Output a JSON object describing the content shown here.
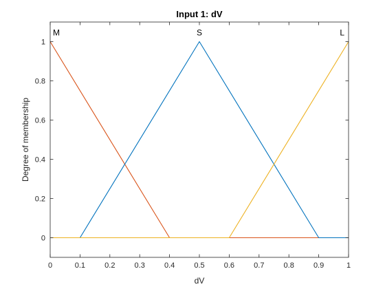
{
  "chart_data": {
    "type": "line",
    "title": "Input 1: dV",
    "xlabel": "dV",
    "ylabel": "Degree of membership",
    "xlim": [
      0,
      1
    ],
    "ylim": [
      -0.1,
      1.1
    ],
    "xticks": [
      0,
      0.1,
      0.2,
      0.3,
      0.4,
      0.5,
      0.6,
      0.7,
      0.8,
      0.9,
      1
    ],
    "xtick_labels": [
      "0",
      "0.1",
      "0.2",
      "0.3",
      "0.4",
      "0.5",
      "0.6",
      "0.7",
      "0.8",
      "0.9",
      "1"
    ],
    "yticks": [
      0,
      0.2,
      0.4,
      0.6,
      0.8,
      1
    ],
    "ytick_labels": [
      "0",
      "0.2",
      "0.4",
      "0.6",
      "0.8",
      "1"
    ],
    "grid": false,
    "series": [
      {
        "name": "M",
        "color": "#D95319",
        "label_at": [
          0.0,
          1.0
        ],
        "points": [
          [
            0,
            1
          ],
          [
            0.4,
            0
          ],
          [
            1,
            0
          ]
        ]
      },
      {
        "name": "S",
        "color": "#0072BD",
        "label_at": [
          0.5,
          1.0
        ],
        "points": [
          [
            0,
            0
          ],
          [
            0.1,
            0
          ],
          [
            0.5,
            1
          ],
          [
            0.9,
            0
          ],
          [
            1,
            0
          ]
        ]
      },
      {
        "name": "L",
        "color": "#EDB120",
        "label_at": [
          1.0,
          1.0
        ],
        "points": [
          [
            0,
            0
          ],
          [
            0.6,
            0
          ],
          [
            1,
            1
          ]
        ]
      }
    ]
  }
}
